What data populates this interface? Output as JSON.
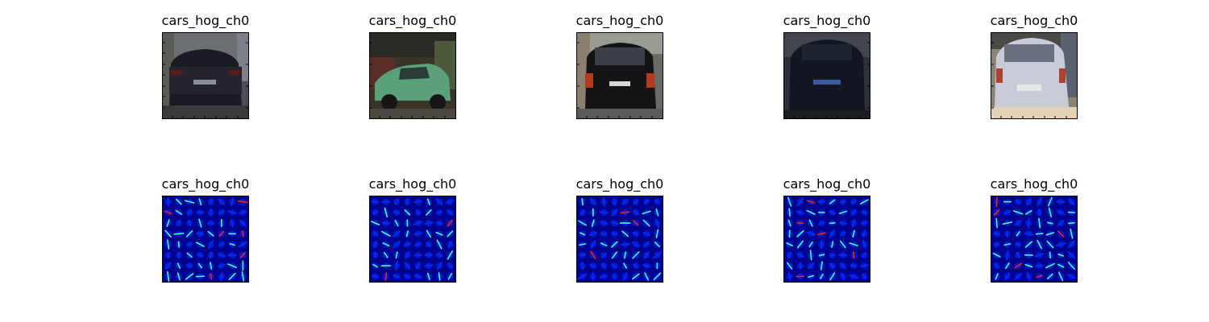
{
  "figure": {
    "rows": [
      {
        "kind": "photo",
        "panels": [
          {
            "title": "cars_hog_ch0",
            "scene": "dark-sedan-rear"
          },
          {
            "title": "cars_hog_ch0",
            "scene": "green-hatchback-side"
          },
          {
            "title": "cars_hog_ch0",
            "scene": "black-suv-rear"
          },
          {
            "title": "cars_hog_ch0",
            "scene": "blurred-dark-car-rear"
          },
          {
            "title": "cars_hog_ch0",
            "scene": "silver-hatchback-rear"
          }
        ]
      },
      {
        "kind": "hog",
        "panels": [
          {
            "title": "cars_hog_ch0",
            "colormap": "jet"
          },
          {
            "title": "cars_hog_ch0",
            "colormap": "jet"
          },
          {
            "title": "cars_hog_ch0",
            "colormap": "jet"
          },
          {
            "title": "cars_hog_ch0",
            "colormap": "jet"
          },
          {
            "title": "cars_hog_ch0",
            "colormap": "jet"
          }
        ]
      }
    ],
    "colors": {
      "hog_background": "#00008f",
      "hog_low": "#0030ff",
      "hog_mid": "#40ffc0",
      "hog_high": "#ff2000"
    }
  }
}
